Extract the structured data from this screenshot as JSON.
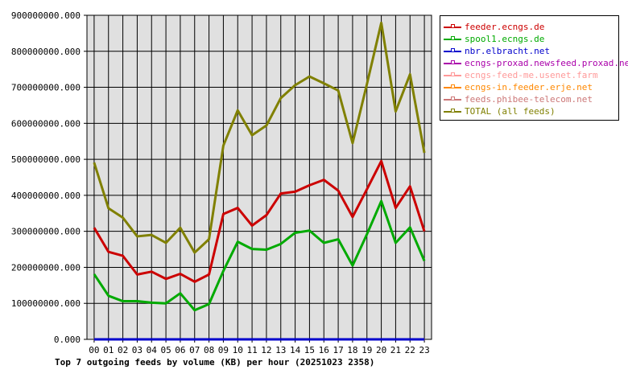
{
  "chart_data": {
    "type": "line",
    "title": "Top 7 outgoing feeds by volume (KB) per hour (20251023 2358)",
    "xlabel": "",
    "ylabel": "",
    "categories": [
      "00",
      "01",
      "02",
      "03",
      "04",
      "05",
      "06",
      "07",
      "08",
      "09",
      "10",
      "11",
      "12",
      "13",
      "14",
      "15",
      "16",
      "17",
      "18",
      "19",
      "20",
      "21",
      "22",
      "23"
    ],
    "ylim": [
      0,
      900000000
    ],
    "y_ticks": [
      "0.000",
      "100000000.000",
      "200000000.000",
      "300000000.000",
      "400000000.000",
      "500000000.000",
      "600000000.000",
      "700000000.000",
      "800000000.000",
      "900000000.000"
    ],
    "grid": true,
    "legend_position": "right",
    "plot_background": "#e0e0e0",
    "series": [
      {
        "name": "feeder.ecngs.de",
        "color": "#cc0000",
        "values": [
          310000000,
          243000000,
          232000000,
          180000000,
          188000000,
          168000000,
          182000000,
          160000000,
          180000000,
          348000000,
          365000000,
          316000000,
          345000000,
          405000000,
          410000000,
          428000000,
          443000000,
          413000000,
          340000000,
          417000000,
          495000000,
          365000000,
          425000000,
          300000000
        ]
      },
      {
        "name": "spool1.ecngs.de",
        "color": "#00aa00",
        "values": [
          181000000,
          121000000,
          106000000,
          106000000,
          102000000,
          100000000,
          128000000,
          81000000,
          98000000,
          190000000,
          271000000,
          251000000,
          249000000,
          265000000,
          296000000,
          302000000,
          268000000,
          278000000,
          205000000,
          292000000,
          384000000,
          268000000,
          311000000,
          218000000
        ]
      },
      {
        "name": "nbr.elbracht.net",
        "color": "#0000cc",
        "values": [
          0,
          0,
          0,
          0,
          0,
          0,
          0,
          0,
          0,
          0,
          0,
          0,
          0,
          0,
          0,
          0,
          0,
          0,
          0,
          0,
          0,
          0,
          0,
          0
        ]
      },
      {
        "name": "ecngs-proxad.newsfeed.proxad.net",
        "color": "#aa00aa",
        "values": [
          0,
          0,
          0,
          0,
          0,
          0,
          0,
          0,
          0,
          0,
          0,
          0,
          0,
          0,
          0,
          0,
          0,
          0,
          0,
          0,
          0,
          0,
          0,
          0
        ]
      },
      {
        "name": "ecngs-feed-me.usenet.farm",
        "color": "#ff9999",
        "values": [
          0,
          0,
          0,
          0,
          0,
          0,
          0,
          0,
          0,
          0,
          0,
          0,
          0,
          0,
          0,
          0,
          0,
          0,
          0,
          0,
          0,
          0,
          0,
          0
        ]
      },
      {
        "name": "ecngs-in.feeder.erje.net",
        "color": "#ff8800",
        "values": [
          0,
          0,
          0,
          0,
          0,
          0,
          0,
          0,
          0,
          0,
          0,
          0,
          0,
          0,
          0,
          0,
          0,
          0,
          0,
          0,
          0,
          0,
          0,
          0
        ]
      },
      {
        "name": "feeds.phibee-telecom.net",
        "color": "#cc7777",
        "values": [
          0,
          0,
          0,
          0,
          0,
          0,
          0,
          0,
          0,
          0,
          0,
          0,
          0,
          0,
          0,
          0,
          0,
          0,
          0,
          0,
          0,
          0,
          0,
          0
        ]
      },
      {
        "name": "TOTAL (all feeds)",
        "color": "#808000",
        "values": [
          491000000,
          364000000,
          338000000,
          286000000,
          290000000,
          268000000,
          310000000,
          241000000,
          278000000,
          538000000,
          636000000,
          567000000,
          594000000,
          670000000,
          706000000,
          730000000,
          711000000,
          691000000,
          545000000,
          709000000,
          879000000,
          633000000,
          736000000,
          518000000
        ]
      }
    ]
  }
}
